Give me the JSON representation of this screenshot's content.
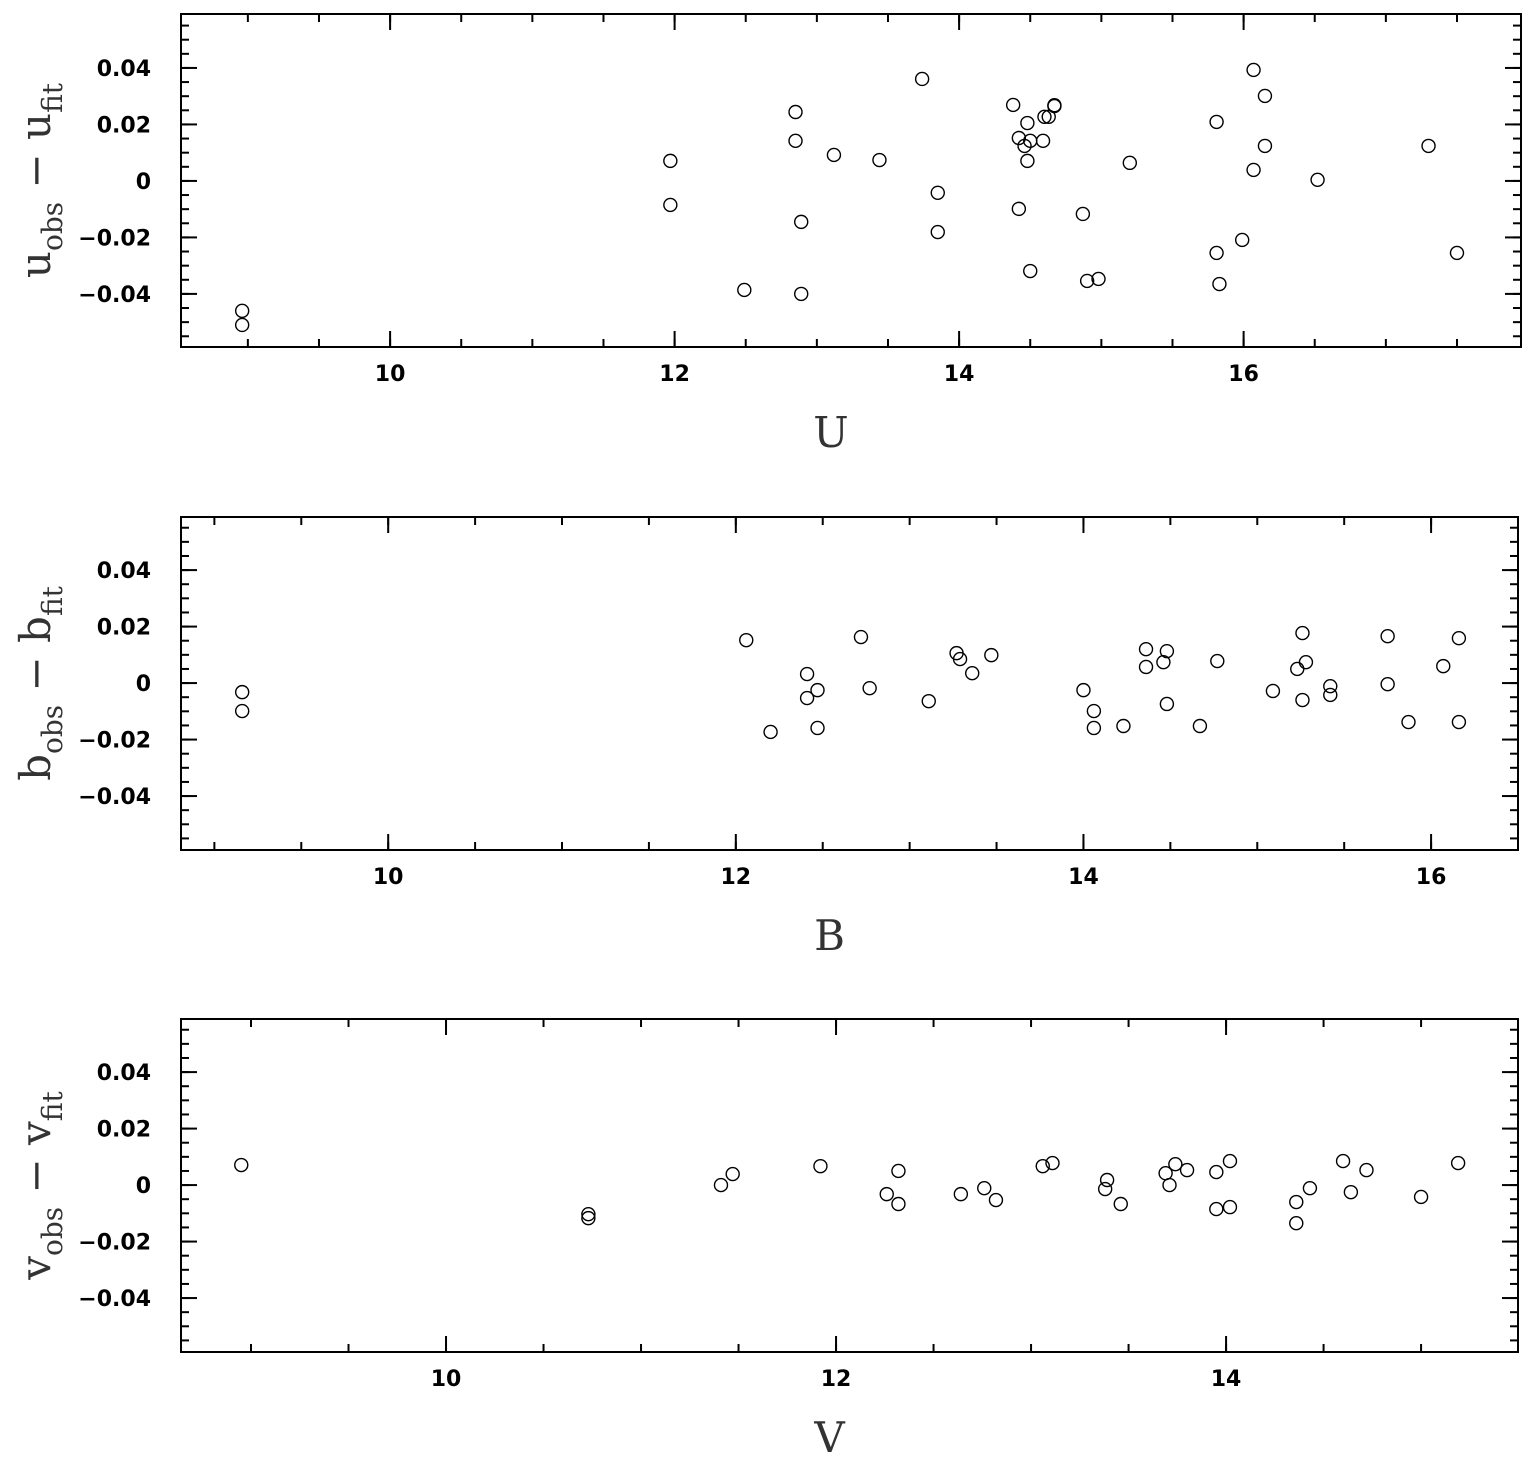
{
  "chart_data": [
    {
      "type": "scatter",
      "color": "#000000",
      "xlabel": "U",
      "ylabel": [
        {
          "text": "u"
        },
        {
          "text": "obs",
          "sub": true
        },
        {
          "text": " − "
        },
        {
          "text": "u"
        },
        {
          "text": "fit",
          "sub": true
        }
      ],
      "xlim": [
        8.53,
        17.95
      ],
      "ylim": [
        -0.0588,
        0.0591
      ],
      "xticks": [
        10,
        12,
        14,
        16
      ],
      "yticks": [
        {
          "value": -0.04,
          "label": "−0.04"
        },
        {
          "value": -0.02,
          "label": "−0.02"
        },
        0,
        0.02,
        0.04
      ],
      "xminor": 0.5,
      "yminor": 0.005,
      "x": [
        8.96,
        8.96,
        11.97,
        11.97,
        12.49,
        12.85,
        12.85,
        12.89,
        12.89,
        13.12,
        13.44,
        13.74,
        13.85,
        13.85,
        14.38,
        14.42,
        14.42,
        14.48,
        14.46,
        14.5,
        14.48,
        14.5,
        14.59,
        14.6,
        14.63,
        14.67,
        14.67,
        14.87,
        14.9,
        14.98,
        15.2,
        15.81,
        15.81,
        15.83,
        15.99,
        16.07,
        16.07,
        16.15,
        16.15,
        16.52,
        17.3,
        17.5
      ],
      "values": [
        -0.046,
        -0.051,
        0.0071,
        -0.0085,
        -0.0386,
        0.0244,
        0.0142,
        -0.0145,
        -0.04,
        0.0092,
        0.0074,
        0.0361,
        -0.0042,
        -0.0181,
        0.0269,
        0.0152,
        -0.0099,
        0.0205,
        0.0124,
        0.0142,
        0.0071,
        -0.0319,
        0.0142,
        0.0227,
        0.0227,
        0.0265,
        0.0268,
        -0.0117,
        -0.0354,
        -0.0347,
        0.0064,
        0.0209,
        -0.0255,
        -0.0365,
        -0.0209,
        0.0393,
        0.0039,
        0.0301,
        0.0124,
        0.0004,
        0.0124,
        -0.0255
      ]
    },
    {
      "type": "scatter",
      "color": "#000000",
      "xlabel": "B",
      "ylabel": [
        {
          "text": "b"
        },
        {
          "text": "obs",
          "sub": true
        },
        {
          "text": " − "
        },
        {
          "text": "b"
        },
        {
          "text": "fit",
          "sub": true
        }
      ],
      "xlim": [
        8.808,
        16.5
      ],
      "ylim": [
        -0.0591,
        0.0588
      ],
      "xticks": [
        10,
        12,
        14,
        16
      ],
      "yticks": [
        {
          "value": -0.04,
          "label": "−0.04"
        },
        {
          "value": -0.02,
          "label": "−0.02"
        },
        0,
        0.02,
        0.04
      ],
      "xminor": 0.5,
      "yminor": 0.005,
      "x": [
        9.16,
        9.16,
        12.06,
        12.2,
        12.41,
        12.41,
        12.47,
        12.47,
        12.72,
        12.77,
        13.11,
        13.27,
        13.29,
        13.36,
        13.47,
        14.0,
        14.06,
        14.06,
        14.23,
        14.36,
        14.36,
        14.46,
        14.48,
        14.48,
        14.67,
        14.77,
        15.09,
        15.23,
        15.26,
        15.26,
        15.28,
        15.42,
        15.42,
        15.75,
        15.75,
        15.87,
        16.07,
        16.16,
        16.16
      ],
      "values": [
        -0.0032,
        -0.0099,
        0.0152,
        -0.0173,
        0.0032,
        -0.0053,
        -0.0025,
        -0.0159,
        0.0163,
        -0.0018,
        -0.0064,
        0.0106,
        0.0085,
        0.0035,
        0.0099,
        -0.0025,
        -0.0099,
        -0.0159,
        -0.0152,
        0.012,
        0.0057,
        0.0074,
        0.0113,
        -0.0074,
        -0.0152,
        0.0078,
        -0.0028,
        0.005,
        0.0177,
        -0.006,
        0.0074,
        -0.0011,
        -0.0042,
        0.0166,
        -0.0004,
        -0.0138,
        0.006,
        0.0159,
        -0.0138
      ]
    },
    {
      "type": "scatter",
      "color": "#000000",
      "xlabel": "V",
      "ylabel": [
        {
          "text": "v"
        },
        {
          "text": "obs",
          "sub": true
        },
        {
          "text": " − "
        },
        {
          "text": "v"
        },
        {
          "text": "fit",
          "sub": true
        }
      ],
      "xlim": [
        8.641,
        15.497
      ],
      "ylim": [
        -0.0591,
        0.0588
      ],
      "xticks": [
        10,
        12,
        14
      ],
      "yticks": [
        {
          "value": -0.04,
          "label": "−0.04"
        },
        {
          "value": -0.02,
          "label": "−0.02"
        },
        0,
        0.02,
        0.04
      ],
      "xminor": 0.5,
      "yminor": 0.005,
      "x": [
        8.95,
        10.73,
        10.73,
        11.41,
        11.47,
        11.92,
        12.26,
        12.32,
        12.32,
        12.64,
        12.76,
        12.82,
        13.06,
        13.11,
        13.38,
        13.39,
        13.46,
        13.69,
        13.71,
        13.74,
        13.8,
        13.95,
        13.95,
        14.02,
        14.02,
        14.36,
        14.36,
        14.43,
        14.6,
        14.64,
        14.72,
        15.0,
        15.19
      ],
      "values": [
        0.0071,
        -0.0103,
        -0.0117,
        0.0,
        0.0039,
        0.0067,
        -0.0032,
        0.005,
        -0.0067,
        -0.0032,
        -0.0011,
        -0.0053,
        0.0067,
        0.0078,
        -0.0014,
        0.0018,
        -0.0067,
        0.0042,
        0.0,
        0.0074,
        0.0053,
        0.0046,
        -0.0085,
        0.0085,
        -0.0078,
        -0.006,
        -0.0135,
        -0.0011,
        0.0085,
        -0.0025,
        0.0053,
        -0.0042,
        0.0078
      ]
    }
  ]
}
